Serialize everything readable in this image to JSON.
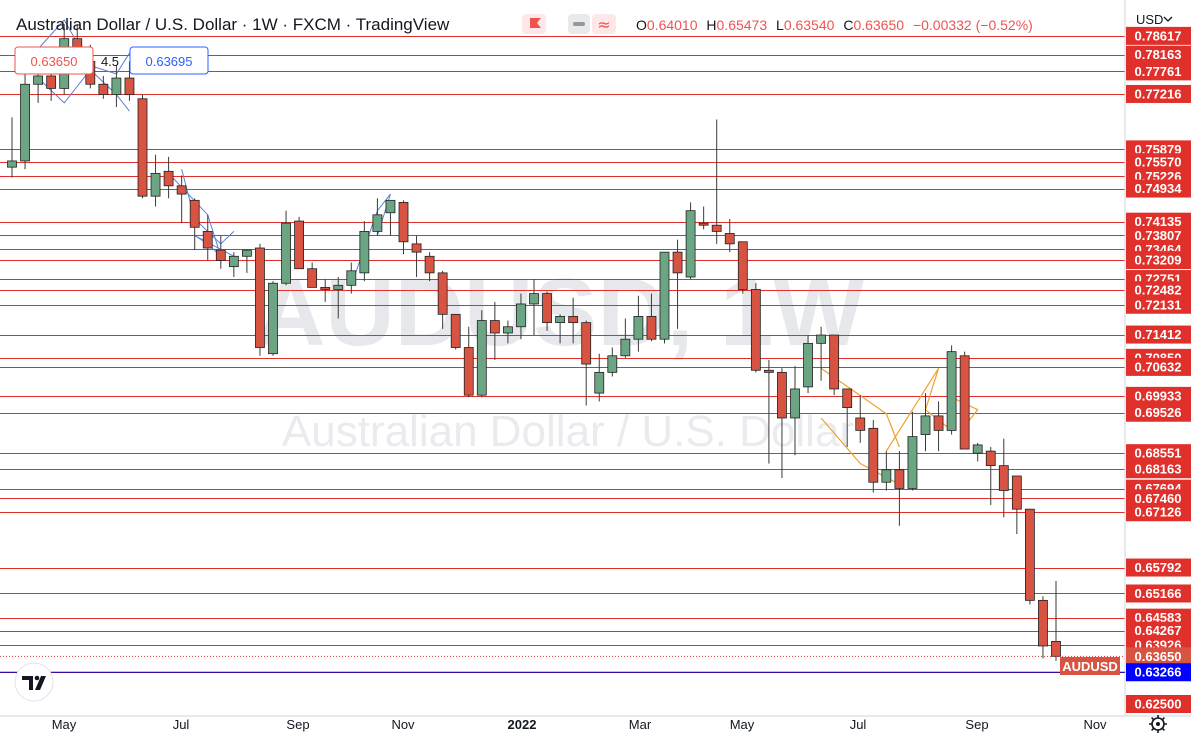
{
  "header": {
    "symbol_title": "Australian Dollar / U.S. Dollar · 1W · FXCM · TradingView",
    "open_label": "O",
    "open": "0.64010",
    "high_label": "H",
    "high": "0.65473",
    "low_label": "L",
    "low": "0.63540",
    "close_label": "C",
    "close": "0.63650",
    "change": "−0.00332 (−0.52%)"
  },
  "trade_widget": {
    "sell_price": "0.63650",
    "spread": "4.5",
    "buy_price": "0.63695"
  },
  "currency_selector": "USD",
  "price_tag": {
    "symbol": "AUDUSD",
    "price": "0.63650",
    "marker_price": "0.63266"
  },
  "watermark": {
    "ticker": "AUDUSD, 1W",
    "name": "Australian Dollar / U.S. Dollar"
  },
  "colors": {
    "bull": "#6ba583",
    "bear": "#d75442",
    "level_line": "#e0302b",
    "pattern": "#5b7fd6",
    "pattern2": "#f0a030",
    "axis_label_bg": "#e0302b",
    "marker_bg": "#0000ff"
  },
  "icons": {
    "logo": "tradingview-logo-icon",
    "settings": "gear-icon",
    "flag": "flag-icon",
    "compare": "compare-icon"
  },
  "chart_data": {
    "type": "candlestick",
    "timeframe": "1W",
    "ylim": [
      0.625,
      0.79
    ],
    "y_ticks": [
      "0.78617",
      "0.78163",
      "0.77761",
      "0.77216",
      "0.75879",
      "0.75570",
      "0.75226",
      "0.74934",
      "0.74135",
      "0.73807",
      "0.73464",
      "0.73209",
      "0.72751",
      "0.72482",
      "0.72131",
      "0.71412",
      "0.70850",
      "0.70632",
      "0.69933",
      "0.69526",
      "0.68551",
      "0.68163",
      "0.67694",
      "0.67460",
      "0.67126",
      "0.65792",
      "0.65166",
      "0.64583",
      "0.64267",
      "0.63926",
      "0.63650",
      "0.63266",
      "0.62500"
    ],
    "horizontal_levels": [
      0.78617,
      0.78163,
      0.77761,
      0.77216,
      0.75879,
      0.7557,
      0.75226,
      0.74934,
      0.74135,
      0.73807,
      0.73464,
      0.73209,
      0.72751,
      0.72482,
      0.72131,
      0.71412,
      0.7085,
      0.70632,
      0.69933,
      0.69526,
      0.68551,
      0.68163,
      0.67694,
      0.6746,
      0.67126,
      0.65792,
      0.65166,
      0.64583,
      0.64267,
      0.63926,
      0.63266
    ],
    "x_labels": [
      "May",
      "Jul",
      "Sep",
      "Nov",
      "2022",
      "Mar",
      "May",
      "Jul",
      "Sep",
      "Nov"
    ],
    "candles": [
      {
        "o": 0.7545,
        "h": 0.7665,
        "l": 0.752,
        "c": 0.756
      },
      {
        "o": 0.756,
        "h": 0.78,
        "l": 0.754,
        "c": 0.7745
      },
      {
        "o": 0.7745,
        "h": 0.781,
        "l": 0.77,
        "c": 0.7765
      },
      {
        "o": 0.7765,
        "h": 0.7815,
        "l": 0.7705,
        "c": 0.7735
      },
      {
        "o": 0.7735,
        "h": 0.789,
        "l": 0.772,
        "c": 0.7855
      },
      {
        "o": 0.7855,
        "h": 0.789,
        "l": 0.778,
        "c": 0.78
      },
      {
        "o": 0.78,
        "h": 0.784,
        "l": 0.7735,
        "c": 0.7745
      },
      {
        "o": 0.7745,
        "h": 0.7765,
        "l": 0.771,
        "c": 0.772
      },
      {
        "o": 0.772,
        "h": 0.779,
        "l": 0.769,
        "c": 0.776
      },
      {
        "o": 0.776,
        "h": 0.78,
        "l": 0.7705,
        "c": 0.772
      },
      {
        "o": 0.771,
        "h": 0.772,
        "l": 0.747,
        "c": 0.7475
      },
      {
        "o": 0.7475,
        "h": 0.7575,
        "l": 0.745,
        "c": 0.753
      },
      {
        "o": 0.7535,
        "h": 0.757,
        "l": 0.747,
        "c": 0.75
      },
      {
        "o": 0.75,
        "h": 0.7525,
        "l": 0.741,
        "c": 0.748
      },
      {
        "o": 0.7465,
        "h": 0.747,
        "l": 0.7345,
        "c": 0.74
      },
      {
        "o": 0.739,
        "h": 0.743,
        "l": 0.732,
        "c": 0.735
      },
      {
        "o": 0.7345,
        "h": 0.738,
        "l": 0.73,
        "c": 0.732
      },
      {
        "o": 0.7305,
        "h": 0.734,
        "l": 0.728,
        "c": 0.733
      },
      {
        "o": 0.733,
        "h": 0.7345,
        "l": 0.729,
        "c": 0.7345
      },
      {
        "o": 0.735,
        "h": 0.736,
        "l": 0.709,
        "c": 0.711
      },
      {
        "o": 0.7095,
        "h": 0.727,
        "l": 0.709,
        "c": 0.7265
      },
      {
        "o": 0.7265,
        "h": 0.744,
        "l": 0.726,
        "c": 0.741
      },
      {
        "o": 0.7415,
        "h": 0.7425,
        "l": 0.73,
        "c": 0.73
      },
      {
        "o": 0.73,
        "h": 0.7315,
        "l": 0.7255,
        "c": 0.7255
      },
      {
        "o": 0.7255,
        "h": 0.7275,
        "l": 0.722,
        "c": 0.725
      },
      {
        "o": 0.725,
        "h": 0.728,
        "l": 0.718,
        "c": 0.726
      },
      {
        "o": 0.726,
        "h": 0.7315,
        "l": 0.724,
        "c": 0.7295
      },
      {
        "o": 0.729,
        "h": 0.7415,
        "l": 0.727,
        "c": 0.739
      },
      {
        "o": 0.739,
        "h": 0.747,
        "l": 0.738,
        "c": 0.743
      },
      {
        "o": 0.7435,
        "h": 0.7455,
        "l": 0.738,
        "c": 0.7465
      },
      {
        "o": 0.746,
        "h": 0.7465,
        "l": 0.7335,
        "c": 0.7365
      },
      {
        "o": 0.736,
        "h": 0.738,
        "l": 0.728,
        "c": 0.734
      },
      {
        "o": 0.733,
        "h": 0.734,
        "l": 0.727,
        "c": 0.729
      },
      {
        "o": 0.729,
        "h": 0.7295,
        "l": 0.7155,
        "c": 0.719
      },
      {
        "o": 0.719,
        "h": 0.719,
        "l": 0.7105,
        "c": 0.711
      },
      {
        "o": 0.711,
        "h": 0.716,
        "l": 0.699,
        "c": 0.6995
      },
      {
        "o": 0.6995,
        "h": 0.72,
        "l": 0.699,
        "c": 0.7175
      },
      {
        "o": 0.7175,
        "h": 0.722,
        "l": 0.708,
        "c": 0.7145
      },
      {
        "o": 0.7145,
        "h": 0.7175,
        "l": 0.712,
        "c": 0.716
      },
      {
        "o": 0.716,
        "h": 0.724,
        "l": 0.713,
        "c": 0.7215
      },
      {
        "o": 0.7215,
        "h": 0.7275,
        "l": 0.714,
        "c": 0.724
      },
      {
        "o": 0.724,
        "h": 0.7245,
        "l": 0.715,
        "c": 0.717
      },
      {
        "o": 0.717,
        "h": 0.719,
        "l": 0.712,
        "c": 0.7185
      },
      {
        "o": 0.7185,
        "h": 0.723,
        "l": 0.712,
        "c": 0.717
      },
      {
        "o": 0.717,
        "h": 0.7175,
        "l": 0.697,
        "c": 0.707
      },
      {
        "o": 0.7,
        "h": 0.7095,
        "l": 0.698,
        "c": 0.705
      },
      {
        "o": 0.705,
        "h": 0.711,
        "l": 0.704,
        "c": 0.709
      },
      {
        "o": 0.709,
        "h": 0.718,
        "l": 0.7085,
        "c": 0.713
      },
      {
        "o": 0.713,
        "h": 0.7235,
        "l": 0.71,
        "c": 0.7185
      },
      {
        "o": 0.7185,
        "h": 0.724,
        "l": 0.7125,
        "c": 0.713
      },
      {
        "o": 0.713,
        "h": 0.734,
        "l": 0.712,
        "c": 0.734
      },
      {
        "o": 0.734,
        "h": 0.737,
        "l": 0.7155,
        "c": 0.729
      },
      {
        "o": 0.728,
        "h": 0.746,
        "l": 0.7275,
        "c": 0.744
      },
      {
        "o": 0.741,
        "h": 0.745,
        "l": 0.7395,
        "c": 0.7405
      },
      {
        "o": 0.7405,
        "h": 0.766,
        "l": 0.736,
        "c": 0.739
      },
      {
        "o": 0.7385,
        "h": 0.742,
        "l": 0.734,
        "c": 0.736
      },
      {
        "o": 0.7365,
        "h": 0.7365,
        "l": 0.724,
        "c": 0.725
      },
      {
        "o": 0.725,
        "h": 0.7265,
        "l": 0.705,
        "c": 0.7055
      },
      {
        "o": 0.7055,
        "h": 0.708,
        "l": 0.683,
        "c": 0.705
      },
      {
        "o": 0.705,
        "h": 0.706,
        "l": 0.6795,
        "c": 0.694
      },
      {
        "o": 0.694,
        "h": 0.7065,
        "l": 0.685,
        "c": 0.701
      },
      {
        "o": 0.7015,
        "h": 0.714,
        "l": 0.7,
        "c": 0.712
      },
      {
        "o": 0.712,
        "h": 0.716,
        "l": 0.703,
        "c": 0.714
      },
      {
        "o": 0.714,
        "h": 0.714,
        "l": 0.6995,
        "c": 0.701
      },
      {
        "o": 0.701,
        "h": 0.701,
        "l": 0.687,
        "c": 0.6965
      },
      {
        "o": 0.694,
        "h": 0.6995,
        "l": 0.688,
        "c": 0.691
      },
      {
        "o": 0.6915,
        "h": 0.6935,
        "l": 0.676,
        "c": 0.6785
      },
      {
        "o": 0.6785,
        "h": 0.686,
        "l": 0.6765,
        "c": 0.6815
      },
      {
        "o": 0.6815,
        "h": 0.686,
        "l": 0.668,
        "c": 0.677
      },
      {
        "o": 0.677,
        "h": 0.6955,
        "l": 0.6765,
        "c": 0.6895
      },
      {
        "o": 0.69,
        "h": 0.7,
        "l": 0.686,
        "c": 0.6945
      },
      {
        "o": 0.6945,
        "h": 0.698,
        "l": 0.686,
        "c": 0.691
      },
      {
        "o": 0.691,
        "h": 0.7115,
        "l": 0.69,
        "c": 0.71
      },
      {
        "o": 0.709,
        "h": 0.71,
        "l": 0.688,
        "c": 0.6865
      },
      {
        "o": 0.6855,
        "h": 0.688,
        "l": 0.6835,
        "c": 0.6875
      },
      {
        "o": 0.686,
        "h": 0.687,
        "l": 0.673,
        "c": 0.6825
      },
      {
        "o": 0.6825,
        "h": 0.689,
        "l": 0.67,
        "c": 0.6765
      },
      {
        "o": 0.68,
        "h": 0.68,
        "l": 0.666,
        "c": 0.672
      },
      {
        "o": 0.672,
        "h": 0.672,
        "l": 0.649,
        "c": 0.65
      },
      {
        "o": 0.65,
        "h": 0.651,
        "l": 0.636,
        "c": 0.639
      },
      {
        "o": 0.6401,
        "h": 0.6547,
        "l": 0.6354,
        "c": 0.6365
      }
    ]
  }
}
